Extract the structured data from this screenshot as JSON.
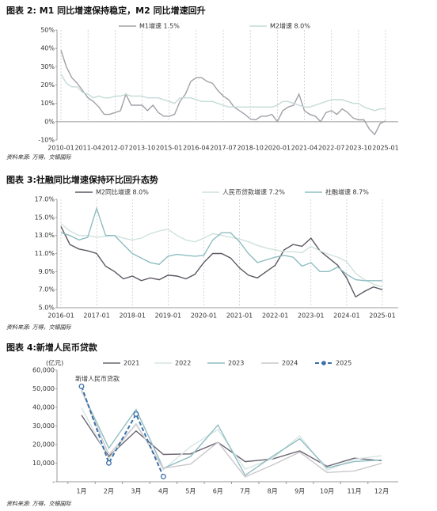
{
  "chart_data": [
    {
      "type": "line",
      "title": "图表 2: M1 同比增速保持稳定，M2 同比增速回升",
      "source": "资料来源: 万得，交银国际",
      "x": [
        "2010-01",
        "2010-04",
        "2010-07",
        "2010-10",
        "2011-01",
        "2011-04",
        "2011-07",
        "2011-10",
        "2012-01",
        "2012-04",
        "2012-07",
        "2012-10",
        "2013-01",
        "2013-04",
        "2013-07",
        "2013-10",
        "2014-01",
        "2014-04",
        "2014-07",
        "2014-10",
        "2015-01",
        "2015-04",
        "2015-07",
        "2015-10",
        "2016-01",
        "2016-04",
        "2016-07",
        "2016-10",
        "2017-01",
        "2017-04",
        "2017-07",
        "2017-10",
        "2018-01",
        "2018-04",
        "2018-07",
        "2018-10",
        "2019-01",
        "2019-04",
        "2019-07",
        "2019-10",
        "2020-01",
        "2020-04",
        "2020-07",
        "2020-10",
        "2021-01",
        "2021-04",
        "2021-07",
        "2021-10",
        "2022-01",
        "2022-04",
        "2022-07",
        "2022-10",
        "2023-01",
        "2023-04",
        "2023-07",
        "2023-10",
        "2024-01",
        "2024-04",
        "2024-07",
        "2024-10",
        "2025-01"
      ],
      "xticks": [
        "2010-01",
        "2011-04",
        "2012-07",
        "2013-10",
        "2015-01",
        "2016-04",
        "2017-07",
        "2018-10",
        "2020-01",
        "2021-04",
        "2022-07",
        "2023-10",
        "2025-01"
      ],
      "xgrid": true,
      "ylim": [
        -10,
        50
      ],
      "yticks": [
        {
          "value": -10,
          "label": "-10%"
        },
        {
          "value": 0,
          "label": "0%"
        },
        {
          "value": 10,
          "label": "10%"
        },
        {
          "value": 20,
          "label": "20%"
        },
        {
          "value": 30,
          "label": "30%"
        },
        {
          "value": 40,
          "label": "40%"
        },
        {
          "value": 50,
          "label": "50%"
        }
      ],
      "series": [
        {
          "name": "M1增速 1.5%",
          "color": "#a39fa7",
          "values": [
            39,
            30,
            24,
            21,
            17,
            13,
            11,
            8,
            4,
            4,
            5,
            6,
            15,
            9,
            9,
            9,
            6,
            9,
            5,
            3,
            3,
            4,
            11,
            15,
            22,
            24,
            24,
            22,
            21,
            17,
            14,
            12,
            8,
            6,
            4,
            1.5,
            1,
            3,
            3,
            4,
            0,
            6,
            8,
            9,
            15,
            6,
            4,
            3,
            0,
            5,
            6,
            4,
            7,
            5,
            2,
            1,
            1,
            -4,
            -7,
            -1,
            0.4
          ]
        },
        {
          "name": "M2增速 8.0%",
          "color": "#c3dcd7",
          "values": [
            26,
            21,
            19,
            19,
            16,
            15,
            13,
            14,
            13,
            13,
            14,
            14,
            15,
            14,
            14,
            14,
            13,
            13,
            13,
            12,
            11,
            10,
            13,
            13,
            13,
            12,
            11,
            11,
            11,
            10,
            9,
            8,
            8,
            8,
            8,
            8,
            8,
            8,
            8,
            8,
            9,
            11,
            11,
            10,
            9,
            8,
            8,
            9,
            10,
            11,
            12,
            12,
            12,
            11,
            10,
            10,
            8,
            7,
            6,
            7,
            7
          ]
        }
      ]
    },
    {
      "type": "line",
      "title": "图表 3:社融同比增速保持环比回升态势",
      "source": "资料来源: 万得，交银国际",
      "x": [
        "2016-01",
        "2016-04",
        "2016-07",
        "2016-10",
        "2017-01",
        "2017-04",
        "2017-07",
        "2017-10",
        "2018-01",
        "2018-04",
        "2018-07",
        "2018-10",
        "2019-01",
        "2019-04",
        "2019-07",
        "2019-10",
        "2020-01",
        "2020-04",
        "2020-07",
        "2020-10",
        "2021-01",
        "2021-04",
        "2021-07",
        "2021-10",
        "2022-01",
        "2022-04",
        "2022-07",
        "2022-10",
        "2023-01",
        "2023-04",
        "2023-07",
        "2023-10",
        "2024-01",
        "2024-04",
        "2024-07",
        "2024-10",
        "2025-01"
      ],
      "xticks": [
        "2016-01",
        "2017-01",
        "2018-01",
        "2019-01",
        "2020-01",
        "2021-01",
        "2022-01",
        "2023-01",
        "2024-01",
        "2025-01"
      ],
      "xgrid": true,
      "ylim": [
        5,
        17
      ],
      "yticks": [
        {
          "value": 5,
          "label": "5.0%"
        },
        {
          "value": 7,
          "label": "7.0%"
        },
        {
          "value": 9,
          "label": "9.0%"
        },
        {
          "value": 11,
          "label": "11.0%"
        },
        {
          "value": 13,
          "label": "13.0%"
        },
        {
          "value": 15,
          "label": "15.0%"
        },
        {
          "value": 17,
          "label": "17.0%"
        }
      ],
      "series": [
        {
          "name": "M2同比增速 8.0%",
          "color": "#5d5762",
          "values": [
            14,
            12,
            11.5,
            11.3,
            11,
            9.6,
            9,
            8.2,
            8.5,
            8,
            8.3,
            8.1,
            8.6,
            8.5,
            8.2,
            8.7,
            10,
            11,
            11,
            10.5,
            9.4,
            8.6,
            8.3,
            9,
            9.7,
            11.4,
            12,
            11.8,
            12.7,
            11.3,
            10.5,
            9.7,
            8.3,
            6.2,
            6.8,
            7.3,
            7
          ]
        },
        {
          "name": "人民币贷款增速 7.2%",
          "color": "#cfe2de",
          "values": [
            14.3,
            13.5,
            13,
            13,
            12.8,
            12.9,
            13,
            12.7,
            12.5,
            12.7,
            13.2,
            13.5,
            13.7,
            13,
            12.5,
            12.3,
            12.7,
            13.2,
            13,
            12.8,
            12.6,
            12.3,
            11.9,
            11.6,
            11.4,
            11.2,
            11.2,
            11.1,
            11.8,
            11.3,
            10.9,
            10.6,
            10.1,
            8.8,
            8.1,
            7.6,
            7.3
          ]
        },
        {
          "name": "社融增速 8.7%",
          "color": "#8fbdc1",
          "values": [
            13.3,
            13,
            12.5,
            12.8,
            16,
            13,
            13,
            12,
            11,
            10.5,
            10,
            9.8,
            10.7,
            10.9,
            10.8,
            10.7,
            10.8,
            12.5,
            13.3,
            13.3,
            12.3,
            11,
            10,
            10.3,
            10.6,
            10.8,
            10.6,
            9.6,
            10,
            9,
            9,
            9.5,
            8.7,
            8.1,
            8,
            8,
            8
          ]
        }
      ]
    },
    {
      "type": "line",
      "title": "图表 4:新增人民币贷款",
      "source": "资料来源: 万得，交银国际",
      "y_label": "(亿元)",
      "annotation": "新增人民币贷款",
      "categories": [
        "1月",
        "2月",
        "3月",
        "4月",
        "5月",
        "6月",
        "7月",
        "8月",
        "9月",
        "10月",
        "11月",
        "12月"
      ],
      "xgrid": false,
      "ylim": [
        0,
        60000
      ],
      "yticks": [
        {
          "value": 0,
          "label": "-"
        },
        {
          "value": 10000,
          "label": "10,000"
        },
        {
          "value": 20000,
          "label": "20,000"
        },
        {
          "value": 30000,
          "label": "30,000"
        },
        {
          "value": 40000,
          "label": "40,000"
        },
        {
          "value": 50000,
          "label": "50,000"
        },
        {
          "value": 60000,
          "label": "60,000"
        }
      ],
      "series": [
        {
          "name": "2021",
          "color": "#6b6370",
          "values": [
            35800,
            13600,
            27300,
            14700,
            15000,
            21200,
            10800,
            12200,
            16600,
            8300,
            12700,
            11300
          ]
        },
        {
          "name": "2022",
          "color": "#d6e6e3",
          "values": [
            39800,
            12300,
            31300,
            6454,
            18900,
            28100,
            6790,
            12500,
            24700,
            6152,
            12100,
            14000
          ]
        },
        {
          "name": "2023",
          "color": "#8fbdc1",
          "values": [
            49000,
            18100,
            38900,
            7188,
            13600,
            30500,
            3459,
            13600,
            23100,
            7384,
            10900,
            11700
          ]
        },
        {
          "name": "2024",
          "color": "#cbc7cd",
          "values": [
            49200,
            14500,
            30900,
            7300,
            9500,
            21300,
            2600,
            9000,
            15900,
            5000,
            5800,
            9900
          ]
        },
        {
          "name": "2025",
          "color": "#3d70a8",
          "dashed": true,
          "markers": true,
          "values": [
            51300,
            10100,
            36400,
            2800,
            null,
            null,
            null,
            null,
            null,
            null,
            null,
            null
          ]
        }
      ]
    }
  ]
}
